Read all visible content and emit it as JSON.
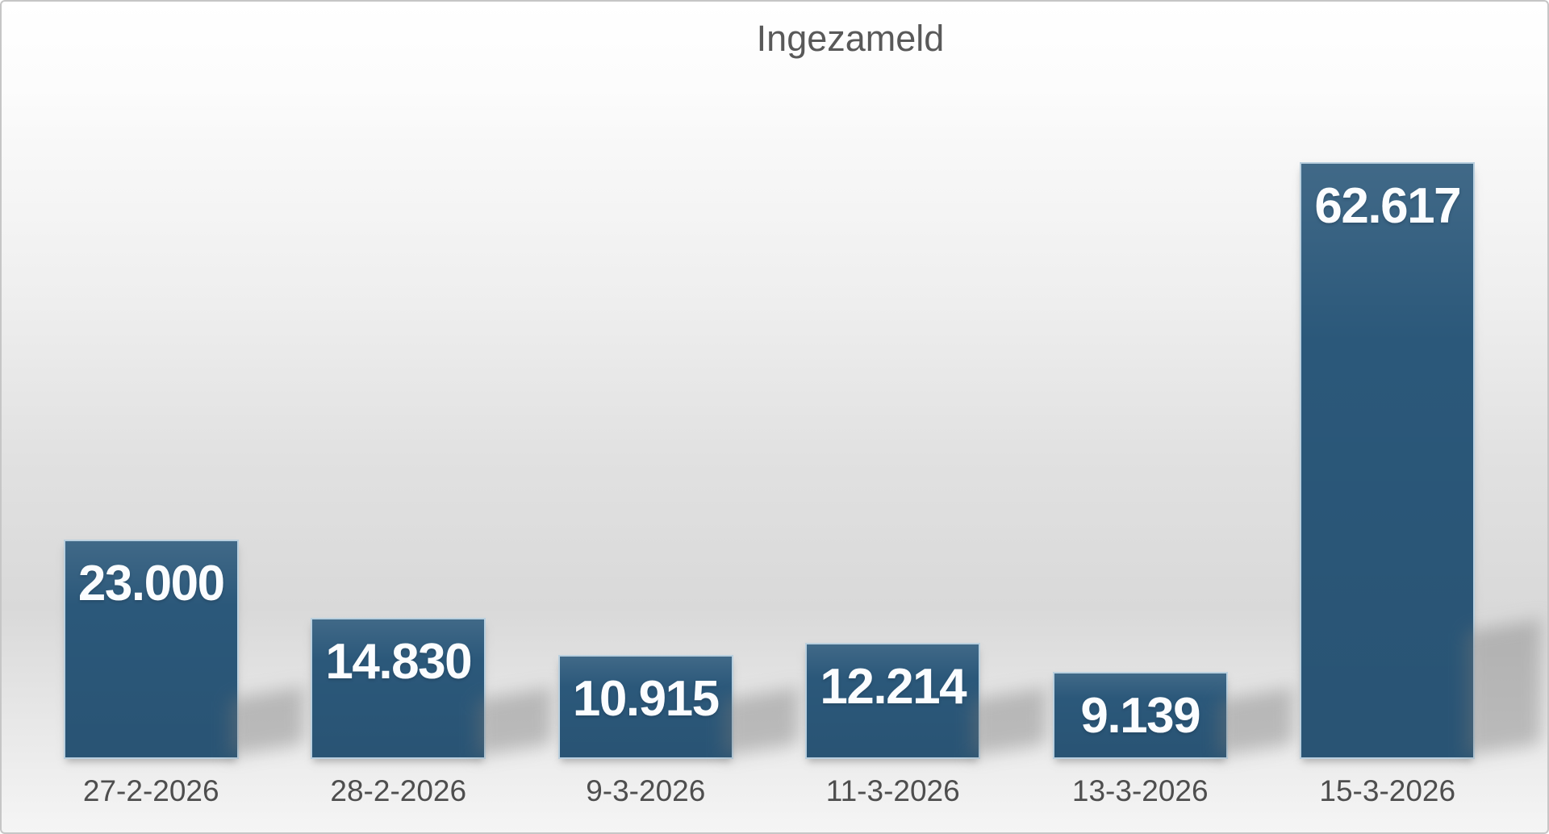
{
  "chart_data": {
    "type": "bar",
    "title": "Ingezameld",
    "series_name": "Ingezameld",
    "categories": [
      "27-2-2026",
      "28-2-2026",
      "9-3-2026",
      "11-3-2026",
      "13-3-2026",
      "15-3-2026"
    ],
    "values": [
      23000,
      14830,
      10915,
      12214,
      9139,
      62617
    ],
    "data_labels": [
      "23.000",
      "14.830",
      "10.915",
      "12.214",
      "9.139",
      "62.617"
    ],
    "xlabel": "",
    "ylabel": "",
    "ylim": [
      0,
      62617
    ],
    "grid": false,
    "legend": "none",
    "value_label_position": "inside-top",
    "bar_color": "#2b587a",
    "bar_border_color": "#bad0df",
    "value_label_color": "#fbfdff",
    "title_color": "#595959",
    "axis_label_color": "#4e4e4e",
    "background_top_color": "#ffffff",
    "background_mid_color": "#d9d9d9",
    "background_bottom_color": "#f5f5f5"
  }
}
